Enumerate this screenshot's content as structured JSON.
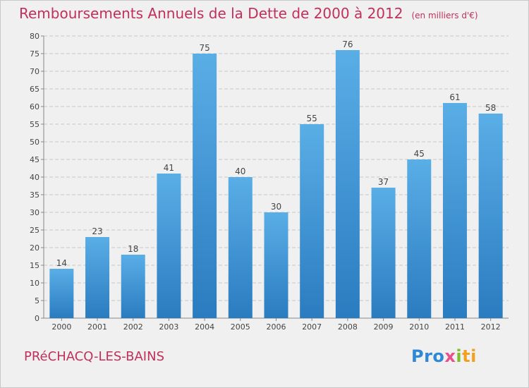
{
  "title": "Remboursements Annuels de la Dette de 2000 à 2012",
  "unit": "(en milliers d'€)",
  "commune": "PRéCHACQ-LES-BAINS",
  "brand": [
    "Pro",
    "x",
    "i",
    "ti"
  ],
  "colors": {
    "bar_light": "#5aaee6",
    "bar_dark": "#2a7cc0",
    "title": "#c0305a",
    "grid": "#c8c8c8",
    "background": "#f0f0f0"
  },
  "chart_data": {
    "type": "bar",
    "categories": [
      "2000",
      "2001",
      "2002",
      "2003",
      "2004",
      "2005",
      "2006",
      "2007",
      "2008",
      "2009",
      "2010",
      "2011",
      "2012"
    ],
    "values": [
      14,
      23,
      18,
      41,
      75,
      40,
      30,
      55,
      76,
      37,
      45,
      61,
      58
    ],
    "ylim": [
      0,
      80
    ],
    "yticks": [
      0,
      5,
      10,
      15,
      20,
      25,
      30,
      35,
      40,
      45,
      50,
      55,
      60,
      65,
      70,
      75,
      80
    ],
    "grid": true
  }
}
